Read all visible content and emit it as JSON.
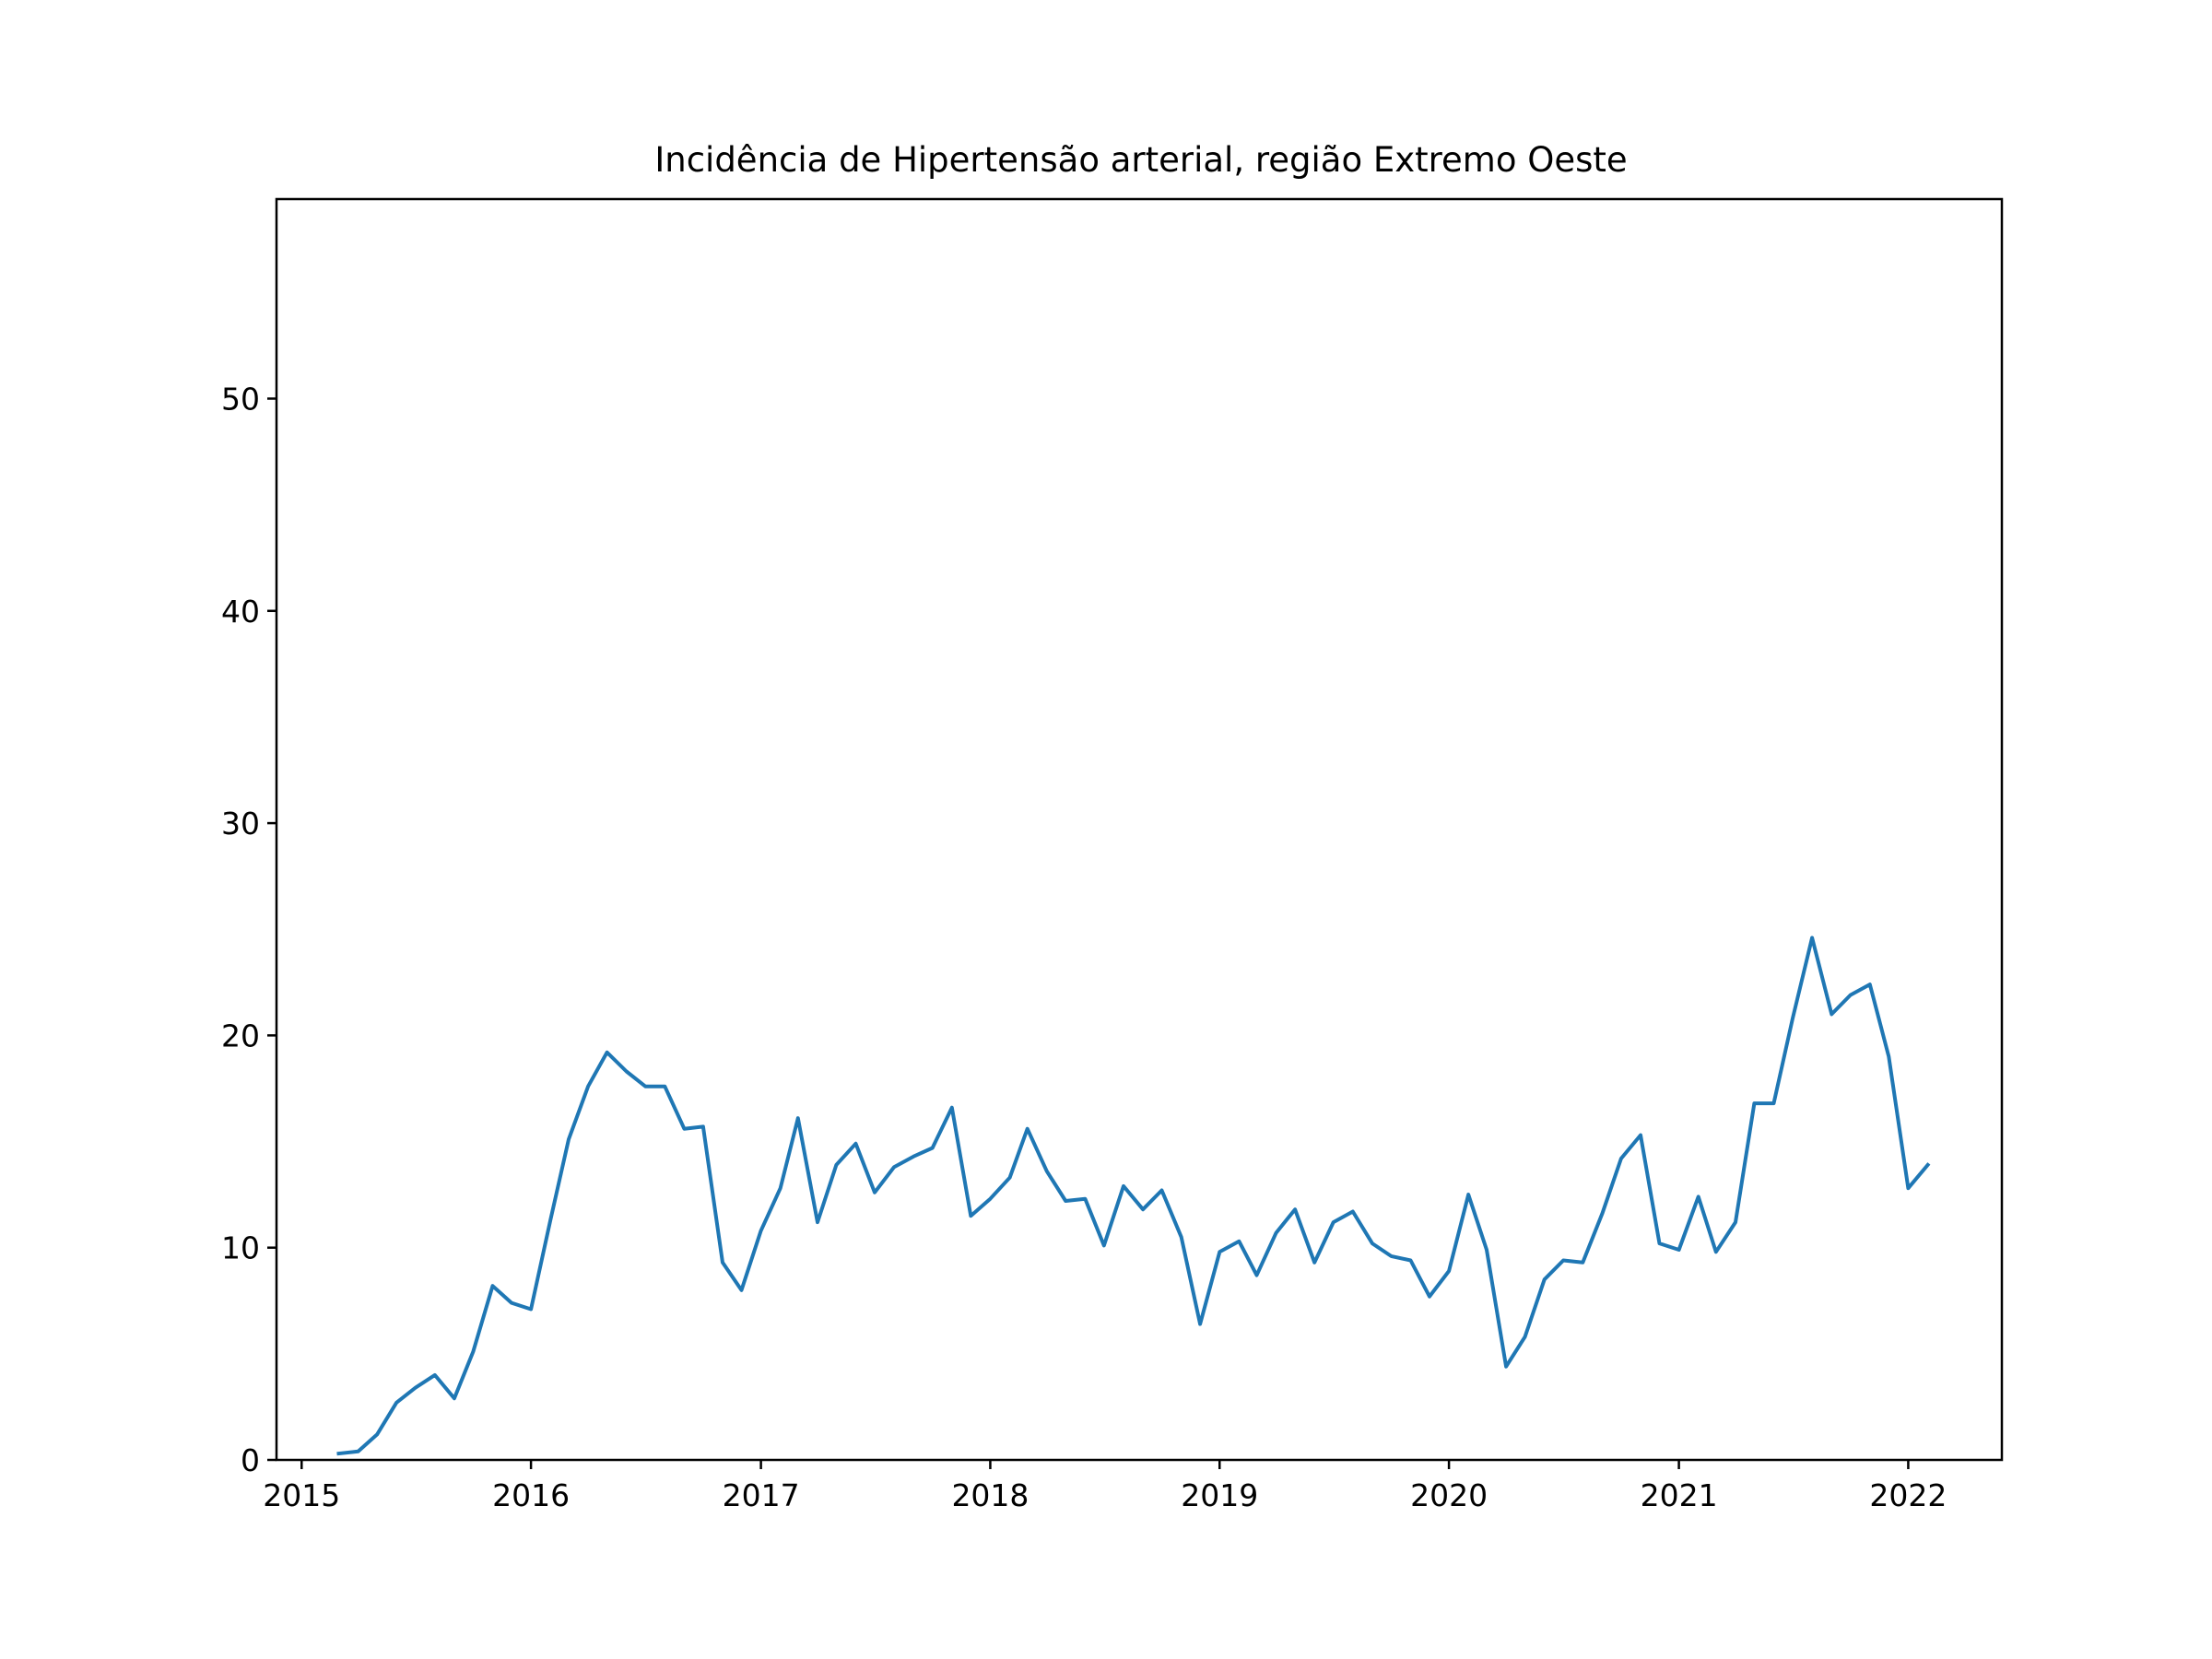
{
  "chart_data": {
    "type": "line",
    "title": "Incidência de Hipertensão arterial, região Extremo Oeste",
    "xlabel": "",
    "ylabel": "",
    "x_ticks": [
      "2015",
      "2016",
      "2017",
      "2018",
      "2019",
      "2020",
      "2021",
      "2022"
    ],
    "y_ticks": [
      "0",
      "10",
      "20",
      "30",
      "40",
      "50"
    ],
    "xlim": [
      "2014-11-22",
      "2022-05-30"
    ],
    "ylim": [
      0,
      59.4
    ],
    "grid": false,
    "legend": "none",
    "colors": {
      "line": "#1f77b4"
    },
    "series": [
      {
        "x": [
          "2015-03-01",
          "2015-04-01",
          "2015-05-01",
          "2015-06-01",
          "2015-07-01",
          "2015-08-01",
          "2015-09-01",
          "2015-10-01",
          "2015-11-01",
          "2015-12-01",
          "2016-01-01",
          "2016-02-01",
          "2016-03-01",
          "2016-04-01",
          "2016-05-01",
          "2016-06-01",
          "2016-07-01",
          "2016-08-01",
          "2016-09-01",
          "2016-10-01",
          "2016-11-01",
          "2016-12-01",
          "2017-01-01",
          "2017-02-01",
          "2017-03-01",
          "2017-04-01",
          "2017-05-01",
          "2017-06-01",
          "2017-07-01",
          "2017-08-01",
          "2017-09-01",
          "2017-10-01",
          "2017-11-01",
          "2017-12-01",
          "2018-01-01",
          "2018-02-01",
          "2018-03-01",
          "2018-04-01",
          "2018-05-01",
          "2018-06-01",
          "2018-07-01",
          "2018-08-01",
          "2018-09-01",
          "2018-10-01",
          "2018-11-01",
          "2018-12-01",
          "2019-01-01",
          "2019-02-01",
          "2019-03-01",
          "2019-04-01",
          "2019-05-01",
          "2019-06-01",
          "2019-07-01",
          "2019-08-01",
          "2019-09-01",
          "2019-10-01",
          "2019-11-01",
          "2019-12-01",
          "2020-01-01",
          "2020-02-01",
          "2020-03-01",
          "2020-04-01",
          "2020-05-01",
          "2020-06-01",
          "2020-07-01",
          "2020-08-01",
          "2020-09-01",
          "2020-10-01",
          "2020-11-01",
          "2020-12-01",
          "2021-01-01",
          "2021-02-01",
          "2021-03-01",
          "2021-04-01",
          "2021-05-01",
          "2021-06-01",
          "2021-07-01",
          "2021-08-01",
          "2021-09-01",
          "2021-10-01",
          "2021-11-01",
          "2021-12-01",
          "2022-01-01",
          "2022-02-01"
        ],
        "values": [
          0.3,
          0.4,
          1.2,
          2.7,
          3.4,
          4.0,
          2.9,
          5.1,
          8.2,
          7.4,
          7.1,
          11.3,
          15.1,
          17.6,
          19.2,
          18.3,
          17.6,
          17.6,
          15.6,
          15.7,
          9.3,
          8.0,
          10.8,
          12.8,
          16.1,
          11.2,
          13.9,
          14.9,
          12.6,
          13.8,
          14.3,
          14.7,
          16.6,
          11.5,
          12.3,
          13.3,
          15.6,
          13.6,
          12.2,
          12.3,
          10.1,
          12.9,
          11.8,
          12.7,
          10.5,
          6.4,
          9.8,
          10.3,
          8.7,
          10.7,
          11.8,
          9.3,
          11.2,
          11.7,
          10.2,
          9.6,
          9.4,
          7.7,
          8.9,
          12.5,
          9.9,
          4.4,
          5.8,
          8.5,
          9.4,
          9.3,
          11.6,
          14.2,
          15.3,
          10.2,
          9.9,
          12.4,
          9.8,
          11.2,
          16.8,
          16.8,
          20.8,
          24.6,
          21.0,
          21.9,
          22.4,
          19.0,
          12.8,
          13.9
        ]
      }
    ]
  }
}
